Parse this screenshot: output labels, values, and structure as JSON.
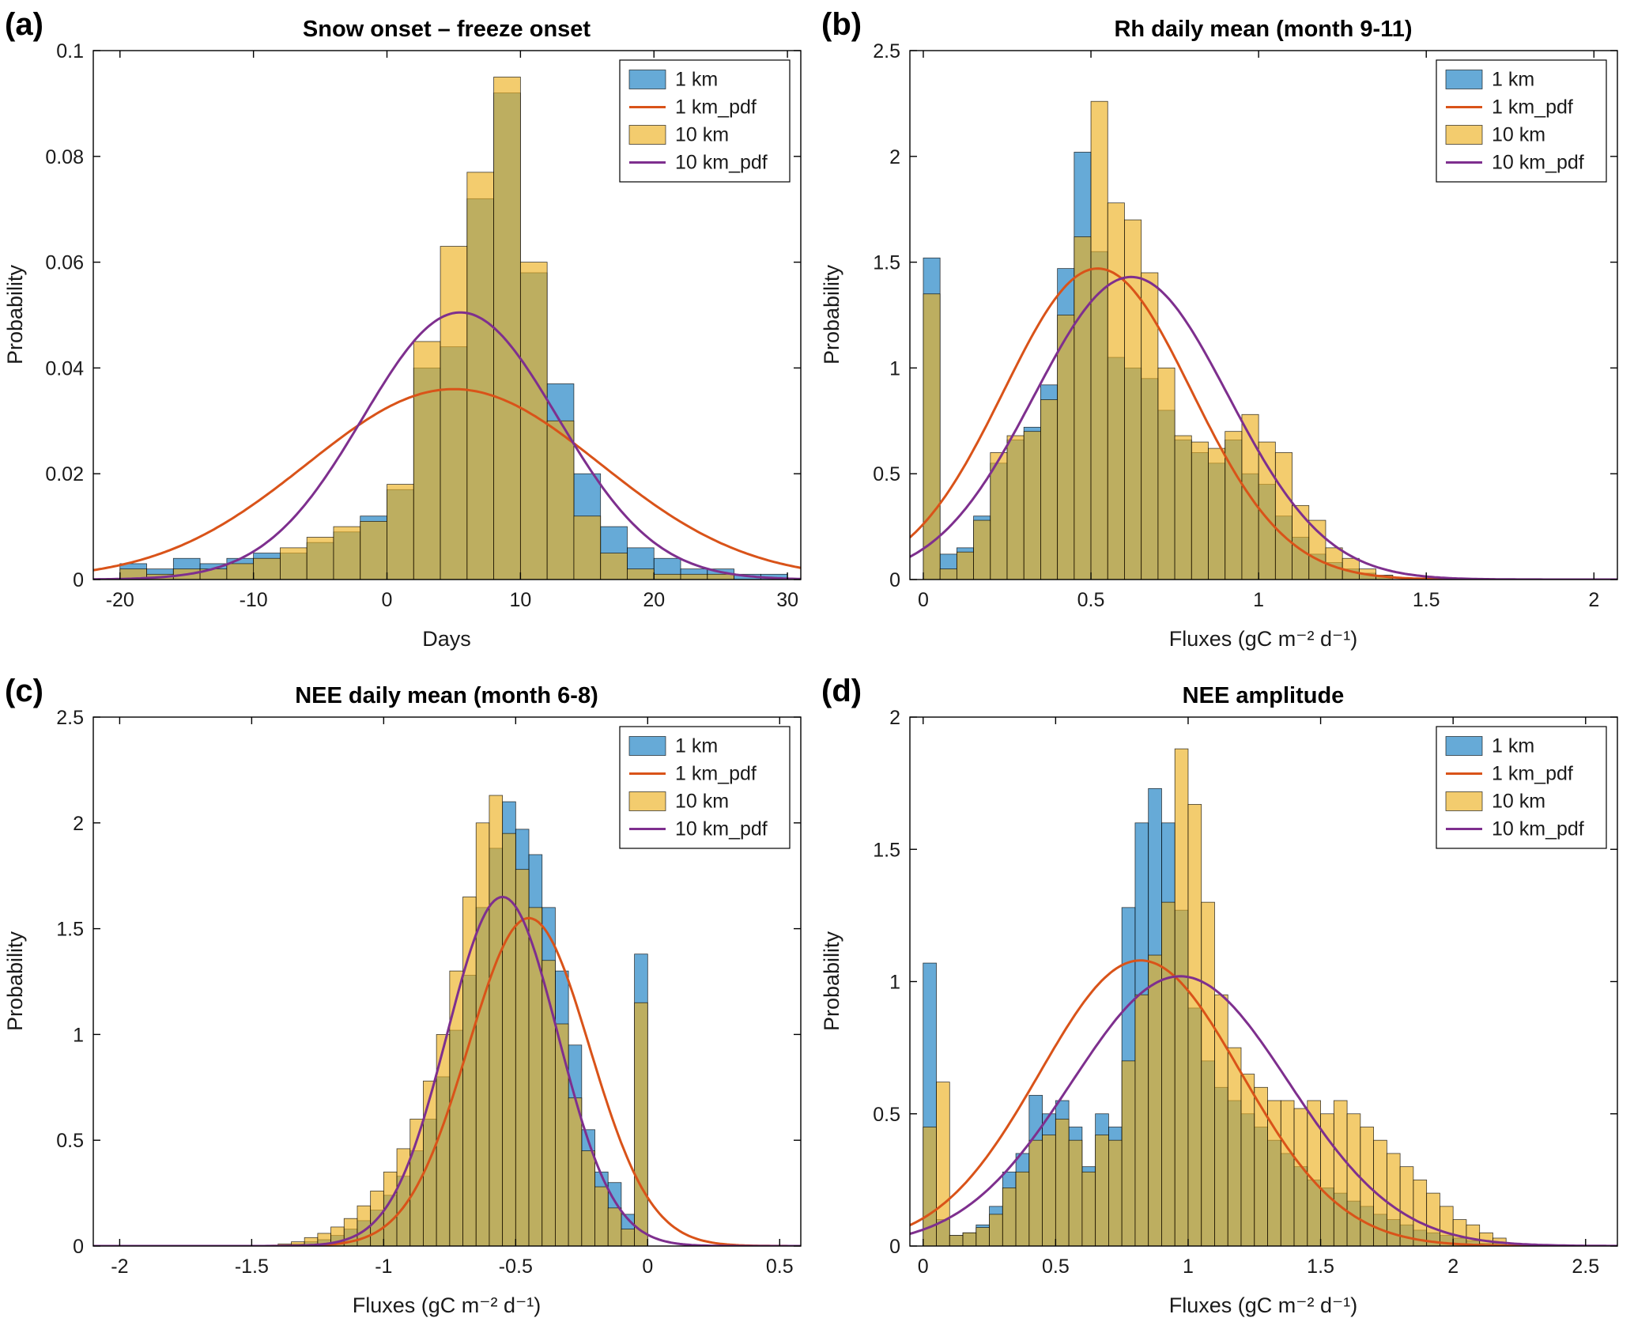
{
  "figure": {
    "background": "#ffffff",
    "colors": {
      "hist_1km_fill": "rgba(0,114,189,0.6)",
      "hist_10km_fill": "rgba(237,177,32,0.65)",
      "pdf_1km": "#D95319",
      "pdf_10km": "#7E2F8E",
      "bar_edge": "rgba(0,0,0,0.75)",
      "axis": "#000000"
    },
    "legend_labels": [
      "1 km",
      "1 km_pdf",
      "10 km",
      "10 km_pdf"
    ]
  },
  "chart_data": [
    {
      "panel": "(a)",
      "type": "bar",
      "subtype": "histogram-with-pdf",
      "title": "Snow onset – freeze onset",
      "xlabel": "Days",
      "ylabel": "Probability",
      "xlim": [
        -22,
        31
      ],
      "ylim": [
        0,
        0.1
      ],
      "xticks": [
        -20,
        -10,
        0,
        10,
        20,
        30
      ],
      "xtick_labels": [
        "-20",
        "-10",
        "0",
        "10",
        "20",
        "30"
      ],
      "yticks": [
        0,
        0.02,
        0.04,
        0.06,
        0.08,
        0.1
      ],
      "ytick_labels": [
        "0",
        "0.02",
        "0.04",
        "0.06",
        "0.08",
        "0.1"
      ],
      "bin_width": 2,
      "bin_centers": [
        -19,
        -17,
        -15,
        -13,
        -11,
        -9,
        -7,
        -5,
        -3,
        -1,
        1,
        3,
        5,
        7,
        9,
        11,
        13,
        15,
        17,
        19,
        21,
        23,
        25,
        27,
        29
      ],
      "series": [
        {
          "name": "1 km",
          "values": [
            0.003,
            0.002,
            0.004,
            0.003,
            0.004,
            0.005,
            0.005,
            0.007,
            0.009,
            0.012,
            0.017,
            0.04,
            0.044,
            0.072,
            0.092,
            0.058,
            0.037,
            0.02,
            0.01,
            0.006,
            0.004,
            0.002,
            0.002,
            0.001,
            0.001
          ]
        },
        {
          "name": "10 km",
          "values": [
            0.002,
            0.001,
            0.002,
            0.002,
            0.003,
            0.004,
            0.006,
            0.008,
            0.01,
            0.011,
            0.018,
            0.045,
            0.063,
            0.077,
            0.095,
            0.06,
            0.03,
            0.012,
            0.005,
            0.002,
            0.001,
            0.001,
            0.001,
            0,
            0
          ]
        }
      ],
      "pdfs": [
        {
          "name": "1 km_pdf",
          "mean": 5,
          "sigma": 11,
          "peak": 0.036
        },
        {
          "name": "10 km_pdf",
          "mean": 5.5,
          "sigma": 7.3,
          "peak": 0.0505
        }
      ]
    },
    {
      "panel": "(b)",
      "type": "bar",
      "subtype": "histogram-with-pdf",
      "title": "Rh daily mean (month 9-11)",
      "xlabel": "Fluxes (gC m⁻² d⁻¹)",
      "ylabel": "Probability",
      "xlim": [
        -0.04,
        2.07
      ],
      "ylim": [
        0,
        2.5
      ],
      "xticks": [
        0,
        0.5,
        1,
        1.5,
        2
      ],
      "xtick_labels": [
        "0",
        "0.5",
        "1",
        "1.5",
        "2"
      ],
      "yticks": [
        0,
        0.5,
        1,
        1.5,
        2,
        2.5
      ],
      "ytick_labels": [
        "0",
        "0.5",
        "1",
        "1.5",
        "2",
        "2.5"
      ],
      "bin_width": 0.05,
      "bin_centers": [
        0.025,
        0.075,
        0.125,
        0.175,
        0.225,
        0.275,
        0.325,
        0.375,
        0.425,
        0.475,
        0.525,
        0.575,
        0.625,
        0.675,
        0.725,
        0.775,
        0.825,
        0.875,
        0.925,
        0.975,
        1.025,
        1.075,
        1.125,
        1.175,
        1.225,
        1.275,
        1.325,
        1.375
      ],
      "series": [
        {
          "name": "1 km",
          "values": [
            1.52,
            0.12,
            0.15,
            0.3,
            0.55,
            0.66,
            0.72,
            0.92,
            1.47,
            2.02,
            1.55,
            1.05,
            1.0,
            0.95,
            0.8,
            0.66,
            0.6,
            0.55,
            0.66,
            0.5,
            0.45,
            0.3,
            0.2,
            0.12,
            0.08,
            0.05,
            0.03,
            0.02
          ]
        },
        {
          "name": "10 km",
          "values": [
            1.35,
            0.05,
            0.13,
            0.28,
            0.6,
            0.68,
            0.7,
            0.85,
            1.25,
            1.62,
            2.26,
            1.78,
            1.7,
            1.45,
            1.0,
            0.68,
            0.65,
            0.62,
            0.7,
            0.78,
            0.65,
            0.6,
            0.35,
            0.28,
            0.15,
            0.1,
            0.05,
            0.02
          ]
        }
      ],
      "pdfs": [
        {
          "name": "1 km_pdf",
          "mean": 0.52,
          "sigma": 0.28,
          "peak": 1.47
        },
        {
          "name": "10 km_pdf",
          "mean": 0.62,
          "sigma": 0.29,
          "peak": 1.43
        }
      ]
    },
    {
      "panel": "(c)",
      "type": "bar",
      "subtype": "histogram-with-pdf",
      "title": "NEE daily mean (month 6-8)",
      "xlabel": "Fluxes (gC m⁻² d⁻¹)",
      "ylabel": "Probability",
      "xlim": [
        -2.1,
        0.58
      ],
      "ylim": [
        0,
        2.5
      ],
      "xticks": [
        -2,
        -1.5,
        -1,
        -0.5,
        0,
        0.5
      ],
      "xtick_labels": [
        "-2",
        "-1.5",
        "-1",
        "-0.5",
        "0",
        "0.5"
      ],
      "yticks": [
        0,
        0.5,
        1,
        1.5,
        2,
        2.5
      ],
      "ytick_labels": [
        "0",
        "0.5",
        "1",
        "1.5",
        "2",
        "2.5"
      ],
      "bin_width": 0.05,
      "bin_centers": [
        -1.375,
        -1.325,
        -1.275,
        -1.225,
        -1.175,
        -1.125,
        -1.075,
        -1.025,
        -0.975,
        -0.925,
        -0.875,
        -0.825,
        -0.775,
        -0.725,
        -0.675,
        -0.625,
        -0.575,
        -0.525,
        -0.475,
        -0.425,
        -0.375,
        -0.325,
        -0.275,
        -0.225,
        -0.175,
        -0.125,
        -0.075,
        -0.025
      ],
      "series": [
        {
          "name": "1 km",
          "values": [
            0.0,
            0.01,
            0.02,
            0.03,
            0.05,
            0.08,
            0.12,
            0.17,
            0.24,
            0.33,
            0.45,
            0.6,
            0.8,
            1.02,
            1.28,
            1.6,
            1.88,
            2.1,
            1.97,
            1.85,
            1.6,
            1.3,
            0.95,
            0.55,
            0.35,
            0.3,
            0.15,
            1.38
          ]
        },
        {
          "name": "10 km",
          "values": [
            0.01,
            0.02,
            0.04,
            0.06,
            0.09,
            0.13,
            0.19,
            0.26,
            0.35,
            0.46,
            0.6,
            0.78,
            1.0,
            1.3,
            1.65,
            2.0,
            2.13,
            1.95,
            1.78,
            1.6,
            1.35,
            1.05,
            0.7,
            0.45,
            0.28,
            0.18,
            0.08,
            1.15
          ]
        }
      ],
      "pdfs": [
        {
          "name": "1 km_pdf",
          "mean": -0.45,
          "sigma": 0.23,
          "peak": 1.55
        },
        {
          "name": "10 km_pdf",
          "mean": -0.55,
          "sigma": 0.21,
          "peak": 1.65
        }
      ]
    },
    {
      "panel": "(d)",
      "type": "bar",
      "subtype": "histogram-with-pdf",
      "title": "NEE amplitude",
      "xlabel": "Fluxes (gC m⁻² d⁻¹)",
      "ylabel": "Probability",
      "xlim": [
        -0.05,
        2.62
      ],
      "ylim": [
        0,
        2
      ],
      "xticks": [
        0,
        0.5,
        1,
        1.5,
        2,
        2.5
      ],
      "xtick_labels": [
        "0",
        "0.5",
        "1",
        "1.5",
        "2",
        "2.5"
      ],
      "yticks": [
        0,
        0.5,
        1,
        1.5,
        2
      ],
      "ytick_labels": [
        "0",
        "0.5",
        "1",
        "1.5",
        "2"
      ],
      "bin_width": 0.05,
      "bin_centers": [
        0.025,
        0.075,
        0.125,
        0.175,
        0.225,
        0.275,
        0.325,
        0.375,
        0.425,
        0.475,
        0.525,
        0.575,
        0.625,
        0.675,
        0.725,
        0.775,
        0.825,
        0.875,
        0.925,
        0.975,
        1.025,
        1.075,
        1.125,
        1.175,
        1.225,
        1.275,
        1.325,
        1.375,
        1.425,
        1.475,
        1.525,
        1.575,
        1.625,
        1.675,
        1.725,
        1.775,
        1.825,
        1.875,
        1.925,
        1.975,
        2.025,
        2.075,
        2.125,
        2.175
      ],
      "series": [
        {
          "name": "1 km",
          "values": [
            1.07,
            0.1,
            0.04,
            0.05,
            0.08,
            0.15,
            0.28,
            0.35,
            0.57,
            0.5,
            0.55,
            0.45,
            0.3,
            0.5,
            0.45,
            1.28,
            1.6,
            1.73,
            1.6,
            1.27,
            0.9,
            0.7,
            0.6,
            0.55,
            0.5,
            0.45,
            0.4,
            0.35,
            0.3,
            0.25,
            0.22,
            0.2,
            0.17,
            0.15,
            0.12,
            0.1,
            0.08,
            0.06,
            0.05,
            0.04,
            0.03,
            0.02,
            0.01,
            0.01
          ]
        },
        {
          "name": "10 km",
          "values": [
            0.45,
            0.62,
            0.04,
            0.05,
            0.07,
            0.12,
            0.22,
            0.28,
            0.4,
            0.42,
            0.48,
            0.4,
            0.28,
            0.42,
            0.4,
            0.7,
            0.95,
            1.1,
            1.3,
            1.88,
            1.67,
            1.3,
            0.95,
            0.75,
            0.65,
            0.6,
            0.55,
            0.55,
            0.52,
            0.55,
            0.5,
            0.55,
            0.5,
            0.45,
            0.4,
            0.35,
            0.3,
            0.25,
            0.2,
            0.15,
            0.1,
            0.08,
            0.05,
            0.03
          ]
        }
      ],
      "pdfs": [
        {
          "name": "1 km_pdf",
          "mean": 0.82,
          "sigma": 0.38,
          "peak": 1.08
        },
        {
          "name": "10 km_pdf",
          "mean": 0.97,
          "sigma": 0.41,
          "peak": 1.02
        }
      ]
    }
  ]
}
